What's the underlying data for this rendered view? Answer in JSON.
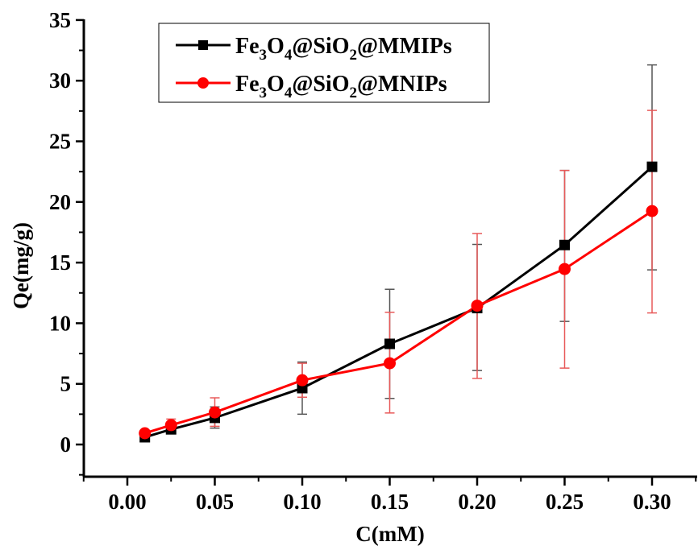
{
  "chart_data": {
    "type": "line",
    "title": "",
    "xlabel": "C(mM)",
    "ylabel": "Qe(mg/g)",
    "xlim": [
      -0.025,
      0.326
    ],
    "ylim": [
      -2.5,
      35
    ],
    "x_ticks": [
      "0.00",
      "0.05",
      "0.10",
      "0.15",
      "0.20",
      "0.25",
      "0.30"
    ],
    "x_tick_values": [
      0.0,
      0.05,
      0.1,
      0.15,
      0.2,
      0.25,
      0.3
    ],
    "y_ticks": [
      "0",
      "5",
      "10",
      "15",
      "20",
      "25",
      "30",
      "35"
    ],
    "y_tick_values": [
      0,
      5,
      10,
      15,
      20,
      25,
      30,
      35
    ],
    "grid": false,
    "legend_position": "top-left",
    "x": [
      0.01,
      0.025,
      0.05,
      0.1,
      0.15,
      0.2,
      0.25,
      0.3
    ],
    "series": [
      {
        "name": "Fe3O4@SiO2@MMIPs",
        "legend_parts": [
          "Fe",
          "3",
          "O",
          "4",
          "@SiO",
          "2",
          "@MMIPs"
        ],
        "color": "#000000",
        "marker": "square",
        "values": [
          0.6,
          1.25,
          2.2,
          4.65,
          8.3,
          11.25,
          16.45,
          22.9
        ],
        "err_low": [
          0.5,
          1.1,
          1.35,
          2.5,
          3.8,
          6.1,
          10.15,
          14.4
        ],
        "err_high": [
          0.7,
          1.4,
          3.1,
          6.8,
          12.8,
          16.5,
          22.6,
          31.3
        ]
      },
      {
        "name": "Fe3O4@SiO2@MNIPs",
        "legend_parts": [
          "Fe",
          "3",
          "O",
          "4",
          "@SiO",
          "2",
          "@MNIPs"
        ],
        "color": "#ff0000",
        "marker": "circle",
        "values": [
          0.93,
          1.6,
          2.65,
          5.3,
          6.7,
          11.45,
          14.47,
          19.25
        ],
        "err_low": [
          0.8,
          1.2,
          1.5,
          3.9,
          2.6,
          5.45,
          6.3,
          10.85
        ],
        "err_high": [
          1.05,
          2.1,
          3.85,
          6.7,
          10.9,
          17.4,
          22.6,
          27.55
        ]
      }
    ]
  }
}
